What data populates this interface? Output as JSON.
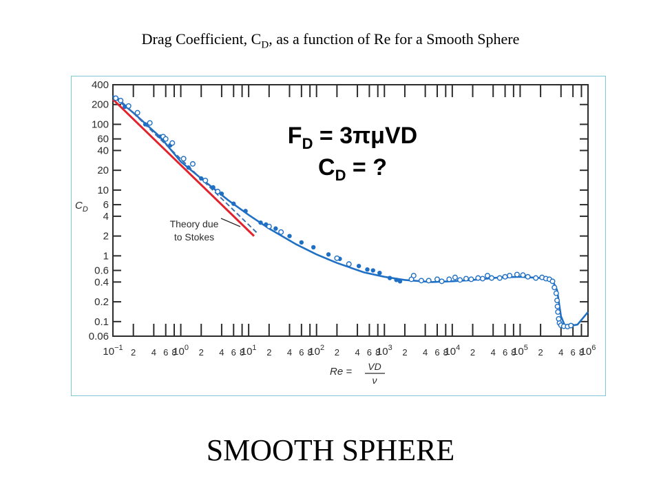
{
  "title": {
    "text": "Drag Coefficient, C",
    "sub": "D",
    "rest": ", as a function of Re for a Smooth Sphere"
  },
  "footer": "SMOOTH SPHERE",
  "chart_data": {
    "type": "scatter",
    "title": "Drag Coefficient, CD, as a function of Re for a Smooth Sphere",
    "x_scale": "log",
    "y_scale": "log",
    "xlim": [
      0.1,
      1000000
    ],
    "ylim": [
      0.06,
      400
    ],
    "ylabel": "C_D",
    "xlabel": {
      "lhs": "Re =",
      "num": "VD",
      "den": "ν"
    },
    "y_ticks": [
      {
        "v": 400,
        "label": "400"
      },
      {
        "v": 200,
        "label": "200"
      },
      {
        "v": 100,
        "label": "100"
      },
      {
        "v": 60,
        "label": "60"
      },
      {
        "v": 40,
        "label": "40"
      },
      {
        "v": 20,
        "label": "20"
      },
      {
        "v": 10,
        "label": "10"
      },
      {
        "v": 6,
        "label": "6"
      },
      {
        "v": 4,
        "label": "4"
      },
      {
        "v": 2,
        "label": "2"
      },
      {
        "v": 1,
        "label": "1"
      },
      {
        "v": 0.6,
        "label": "0.6"
      },
      {
        "v": 0.4,
        "label": "0.4"
      },
      {
        "v": 0.2,
        "label": "0.2"
      },
      {
        "v": 0.1,
        "label": "0.1"
      },
      {
        "v": 0.06,
        "label": "0.06"
      }
    ],
    "x_decades": [
      {
        "v": 0.1,
        "base": "10",
        "exp": "−1"
      },
      {
        "v": 1,
        "base": "10",
        "exp": "0"
      },
      {
        "v": 10,
        "base": "10",
        "exp": "1"
      },
      {
        "v": 100,
        "base": "10",
        "exp": "2"
      },
      {
        "v": 1000,
        "base": "10",
        "exp": "3"
      },
      {
        "v": 10000,
        "base": "10",
        "exp": "4"
      },
      {
        "v": 100000,
        "base": "10",
        "exp": "5"
      },
      {
        "v": 1000000,
        "base": "10",
        "exp": "6"
      }
    ],
    "x_minor_labels": [
      "2",
      "4",
      "6",
      "8"
    ],
    "equations": {
      "force": {
        "lhs": "F",
        "sub": "D",
        "rhs": " = 3πμVD"
      },
      "coef": {
        "lhs": "C",
        "sub": "D",
        "rhs": " = ?"
      }
    },
    "annotation": {
      "line1": "Theory due",
      "line2": "to Stokes"
    },
    "series": [
      {
        "kind": "fitted curve",
        "color": "#1f6fc5",
        "points": [
          [
            0.1,
            270
          ],
          [
            0.2,
            150
          ],
          [
            0.5,
            64
          ],
          [
            1,
            27
          ],
          [
            2,
            15
          ],
          [
            5,
            7
          ],
          [
            10,
            4.2
          ],
          [
            20,
            2.6
          ],
          [
            50,
            1.5
          ],
          [
            100,
            1.05
          ],
          [
            200,
            0.78
          ],
          [
            500,
            0.56
          ],
          [
            1000,
            0.48
          ],
          [
            2000,
            0.43
          ],
          [
            5000,
            0.4
          ],
          [
            10000,
            0.41
          ],
          [
            20000,
            0.43
          ],
          [
            50000,
            0.47
          ],
          [
            100000,
            0.48
          ],
          [
            200000,
            0.46
          ],
          [
            300000,
            0.42
          ],
          [
            350000,
            0.3
          ],
          [
            400000,
            0.12
          ],
          [
            450000,
            0.09
          ],
          [
            500000,
            0.085
          ],
          [
            700000,
            0.09
          ],
          [
            1000000,
            0.14
          ]
        ]
      },
      {
        "kind": "Stokes theory",
        "color": "#e0232d",
        "points": [
          [
            0.1,
            240
          ],
          [
            12,
            2
          ]
        ]
      },
      {
        "kind": "measured (filled)",
        "color": "#1f6fc5",
        "points": [
          [
            0.15,
            185
          ],
          [
            0.3,
            100
          ],
          [
            0.5,
            65
          ],
          [
            0.7,
            48
          ],
          [
            1.3,
            22
          ],
          [
            2,
            15
          ],
          [
            3,
            11
          ],
          [
            4,
            8.8
          ],
          [
            6,
            6.2
          ],
          [
            9,
            4.8
          ],
          [
            15,
            3.2
          ],
          [
            18,
            3.0
          ],
          [
            25,
            2.6
          ],
          [
            40,
            2.0
          ],
          [
            60,
            1.6
          ],
          [
            90,
            1.35
          ],
          [
            150,
            1.05
          ],
          [
            220,
            0.9
          ],
          [
            420,
            0.7
          ],
          [
            560,
            0.62
          ],
          [
            680,
            0.6
          ],
          [
            850,
            0.55
          ],
          [
            1200,
            0.46
          ],
          [
            1500,
            0.43
          ],
          [
            1700,
            0.41
          ]
        ]
      },
      {
        "kind": "measured (open)",
        "color": "#1f6fc5",
        "points": [
          [
            0.11,
            250
          ],
          [
            0.13,
            230
          ],
          [
            0.17,
            190
          ],
          [
            0.23,
            150
          ],
          [
            0.35,
            105
          ],
          [
            0.55,
            65
          ],
          [
            0.6,
            60
          ],
          [
            0.75,
            52
          ],
          [
            1.1,
            30
          ],
          [
            1.5,
            25
          ],
          [
            2.3,
            14
          ],
          [
            3.5,
            9.5
          ],
          [
            20,
            2.8
          ],
          [
            30,
            2.3
          ],
          [
            200,
            0.92
          ],
          [
            300,
            0.75
          ],
          [
            2500,
            0.44
          ],
          [
            2700,
            0.5
          ],
          [
            3500,
            0.42
          ],
          [
            4500,
            0.42
          ],
          [
            6000,
            0.44
          ],
          [
            7000,
            0.41
          ],
          [
            9000,
            0.44
          ],
          [
            11000,
            0.47
          ],
          [
            13000,
            0.43
          ],
          [
            16000,
            0.45
          ],
          [
            19000,
            0.44
          ],
          [
            24000,
            0.46
          ],
          [
            28000,
            0.45
          ],
          [
            33000,
            0.5
          ],
          [
            38000,
            0.46
          ],
          [
            50000,
            0.46
          ],
          [
            60000,
            0.48
          ],
          [
            70000,
            0.5
          ],
          [
            90000,
            0.52
          ],
          [
            110000,
            0.51
          ],
          [
            130000,
            0.48
          ],
          [
            170000,
            0.46
          ],
          [
            210000,
            0.47
          ],
          [
            240000,
            0.45
          ],
          [
            270000,
            0.44
          ],
          [
            300000,
            0.41
          ],
          [
            320000,
            0.33
          ],
          [
            340000,
            0.27
          ],
          [
            350000,
            0.21
          ],
          [
            355000,
            0.17
          ],
          [
            360000,
            0.14
          ],
          [
            370000,
            0.11
          ],
          [
            380000,
            0.095
          ],
          [
            400000,
            0.088
          ],
          [
            440000,
            0.085
          ],
          [
            500000,
            0.084
          ],
          [
            560000,
            0.087
          ]
        ]
      }
    ]
  }
}
